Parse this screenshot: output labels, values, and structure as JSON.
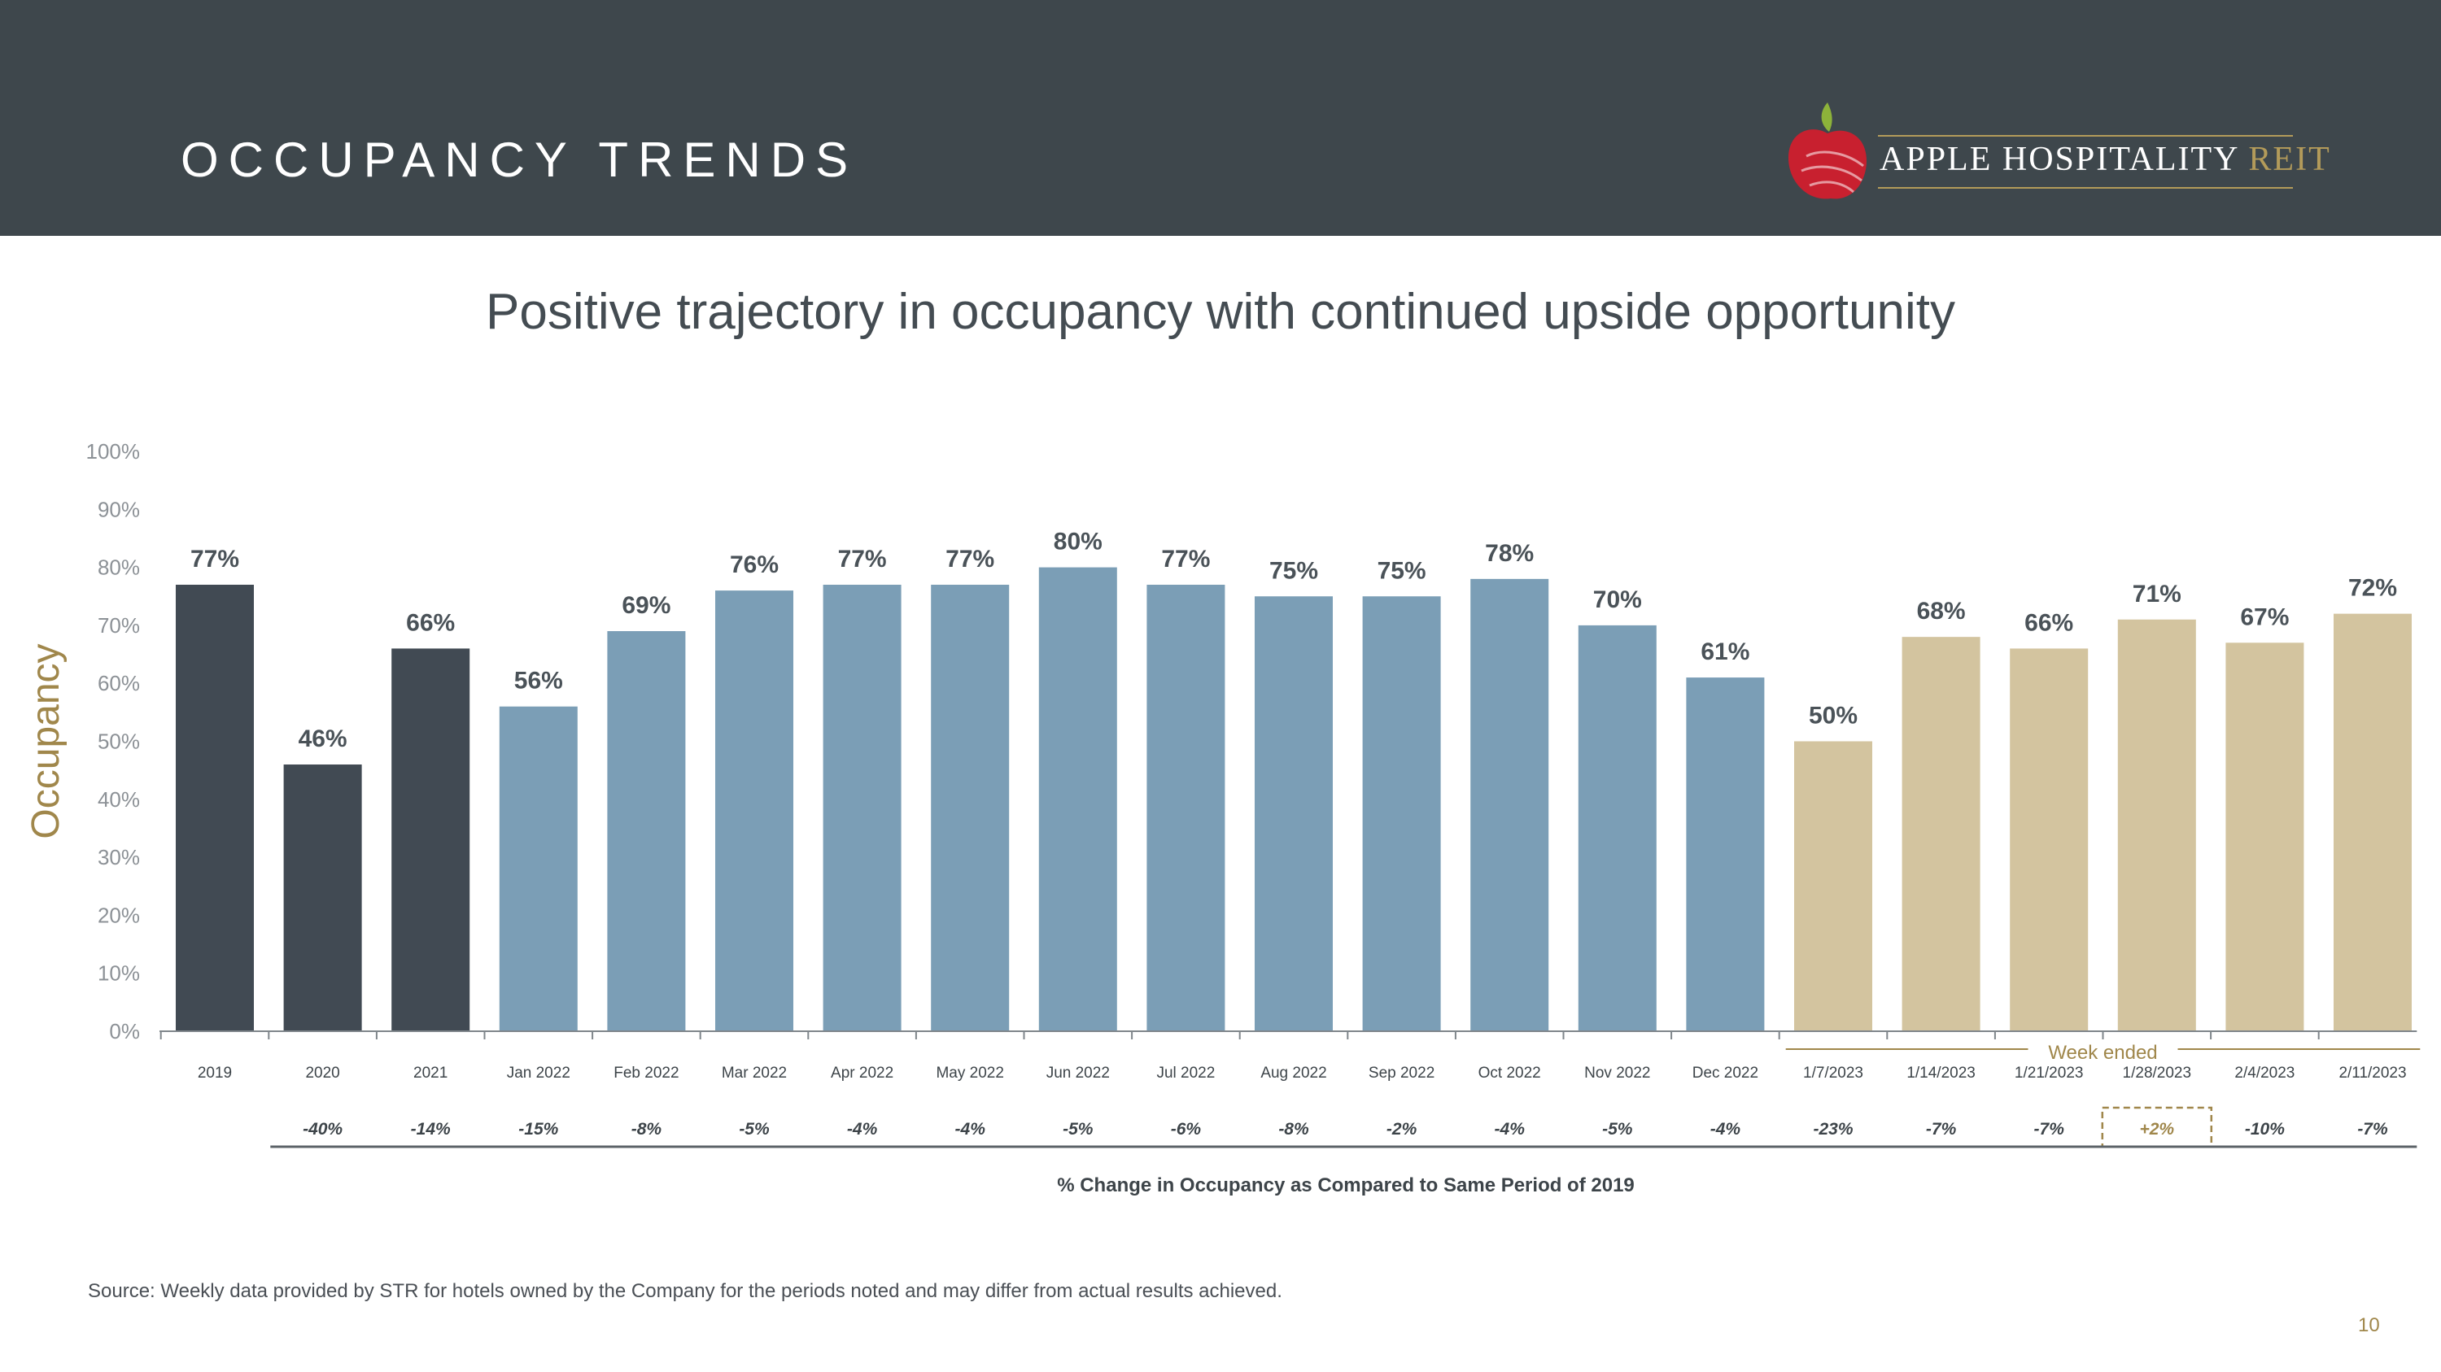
{
  "header": {
    "title": "OCCUPANCY TRENDS",
    "logo": {
      "brand": "APPLE HOSPITALITY",
      "accent": "REIT",
      "apple_color": "#c8202f",
      "leaf_color": "#8db33a"
    }
  },
  "subtitle": "Positive trajectory in occupancy with continued upside opportunity",
  "chart_data": {
    "type": "bar",
    "ylabel": "Occupancy",
    "ylim": [
      0,
      100
    ],
    "yticks": [
      "0%",
      "10%",
      "20%",
      "30%",
      "40%",
      "50%",
      "60%",
      "70%",
      "80%",
      "90%",
      "100%"
    ],
    "categories": [
      "2019",
      "2020",
      "2021",
      "Jan 2022",
      "Feb 2022",
      "Mar 2022",
      "Apr 2022",
      "May 2022",
      "Jun 2022",
      "Jul 2022",
      "Aug 2022",
      "Sep 2022",
      "Oct 2022",
      "Nov 2022",
      "Dec 2022",
      "1/7/2023",
      "1/14/2023",
      "1/21/2023",
      "1/28/2023",
      "2/4/2023",
      "2/11/2023"
    ],
    "values": [
      77,
      46,
      66,
      56,
      69,
      76,
      77,
      77,
      80,
      77,
      75,
      75,
      78,
      70,
      61,
      50,
      68,
      66,
      71,
      67,
      72
    ],
    "value_labels": [
      "77%",
      "46%",
      "66%",
      "56%",
      "69%",
      "76%",
      "77%",
      "77%",
      "80%",
      "77%",
      "75%",
      "75%",
      "78%",
      "70%",
      "61%",
      "50%",
      "68%",
      "66%",
      "71%",
      "67%",
      "72%"
    ],
    "groups": [
      "annual",
      "annual",
      "annual",
      "monthly",
      "monthly",
      "monthly",
      "monthly",
      "monthly",
      "monthly",
      "monthly",
      "monthly",
      "monthly",
      "monthly",
      "monthly",
      "monthly",
      "weekly",
      "weekly",
      "weekly",
      "weekly",
      "weekly",
      "weekly"
    ],
    "group_colors": {
      "annual": "#414a53",
      "monthly": "#7b9eb6",
      "weekly": "#d3c49f"
    },
    "pct_change": [
      "",
      "-40%",
      "-14%",
      "-15%",
      "-8%",
      "-5%",
      "-4%",
      "-4%",
      "-5%",
      "-6%",
      "-8%",
      "-2%",
      "-4%",
      "-5%",
      "-4%",
      "-23%",
      "-7%",
      "-7%",
      "+2%",
      "-10%",
      "-7%"
    ],
    "highlight_index": 18,
    "highlight_color": "#a0874b",
    "week_label": "Week ended",
    "change_caption": "% Change in Occupancy as Compared to Same Period of 2019"
  },
  "footer": {
    "source": "Source:  Weekly data provided by STR for hotels owned by the Company for the periods noted and may differ from actual results achieved.",
    "page_number": "10"
  }
}
